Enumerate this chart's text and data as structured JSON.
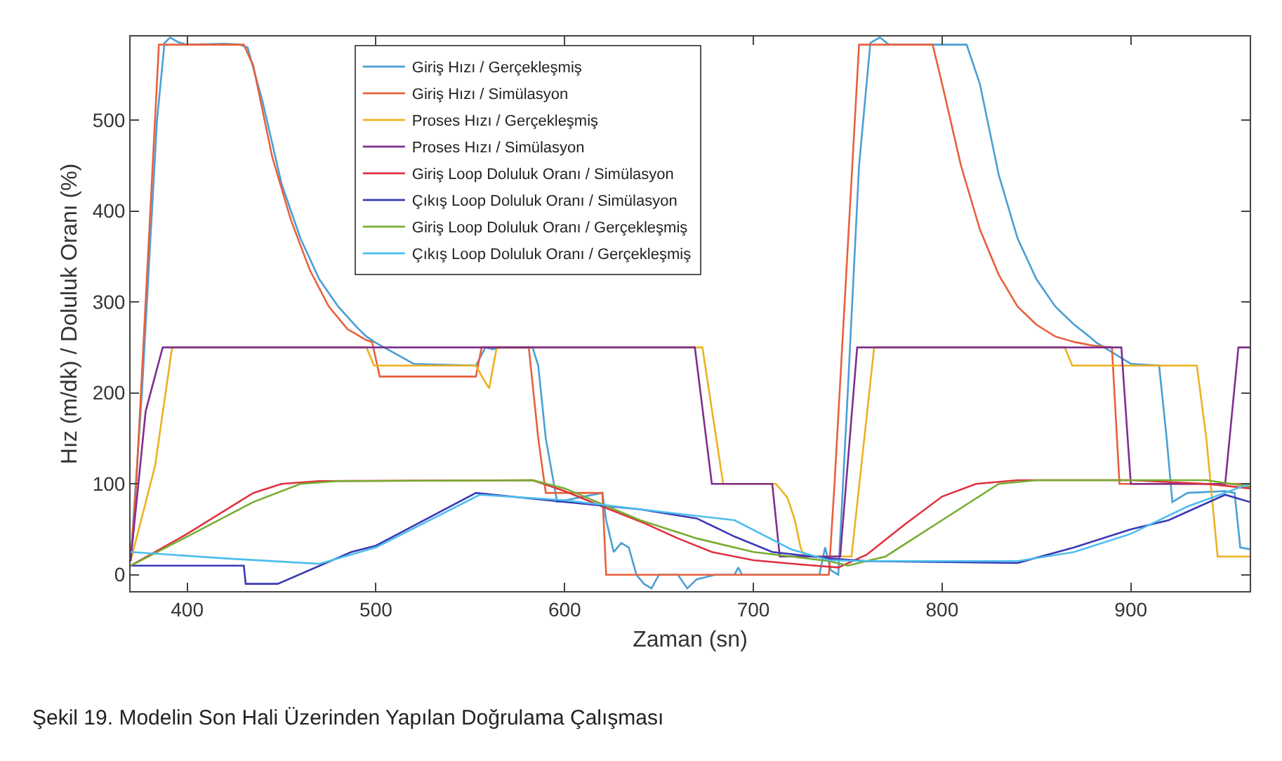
{
  "chart_data": {
    "type": "line",
    "xlabel": "Zaman (sn)",
    "ylabel": "Hız (m/dk) / Doluluk Oranı (%)",
    "xlim": [
      370,
      963
    ],
    "ylim": [
      -18,
      592
    ],
    "xticks": [
      400,
      500,
      600,
      700,
      800,
      900
    ],
    "yticks": [
      0,
      100,
      200,
      300,
      400,
      500
    ],
    "legend": "top left",
    "marker": "none",
    "line_style": "solid",
    "series": [
      {
        "name": "Giriş Hızı / Gerçekleşmiş",
        "color": "#4a9fd4",
        "x": [
          370,
          376,
          384,
          388,
          391,
          395,
          400,
          420,
          428,
          432,
          440,
          450,
          460,
          470,
          480,
          490,
          495,
          500,
          520,
          553,
          558,
          562,
          566,
          583,
          586,
          590,
          596,
          620,
          622,
          626,
          630,
          634,
          638,
          642,
          646,
          650,
          655,
          660,
          665,
          670,
          680,
          690,
          692,
          694,
          700,
          720,
          735,
          738,
          741,
          745,
          750,
          756,
          762,
          767,
          772,
          790,
          810,
          813,
          820,
          830,
          840,
          850,
          860,
          870,
          878,
          882,
          900,
          915,
          919,
          922,
          930,
          950,
          955,
          958,
          963
        ],
        "values": [
          15,
          200,
          500,
          585,
          591,
          586,
          583,
          584,
          583,
          580,
          520,
          430,
          370,
          325,
          295,
          272,
          262,
          255,
          232,
          230,
          250,
          248,
          250,
          250,
          230,
          150,
          80,
          90,
          60,
          25,
          35,
          30,
          0,
          -10,
          -15,
          0,
          0,
          0,
          -15,
          -5,
          0,
          0,
          8,
          0,
          0,
          0,
          0,
          30,
          5,
          0,
          200,
          450,
          585,
          591,
          583,
          583,
          583,
          583,
          540,
          440,
          370,
          325,
          295,
          275,
          262,
          255,
          232,
          230,
          150,
          80,
          90,
          92,
          90,
          30,
          28
        ]
      },
      {
        "name": "Giriş Hızı / Simülasyon",
        "color": "#e8603c",
        "x": [
          370,
          373,
          385,
          430,
          435,
          445,
          455,
          465,
          475,
          485,
          495,
          498,
          502,
          553,
          556,
          581,
          586,
          590,
          620,
          622,
          740,
          743,
          756,
          795,
          800,
          810,
          820,
          830,
          840,
          850,
          860,
          870,
          880,
          890,
          894,
          963
        ],
        "values": [
          15,
          100,
          583,
          583,
          560,
          460,
          390,
          335,
          295,
          270,
          258,
          256,
          218,
          218,
          250,
          250,
          150,
          90,
          90,
          0,
          0,
          100,
          583,
          583,
          540,
          450,
          380,
          330,
          295,
          275,
          262,
          256,
          252,
          250,
          100,
          100
        ]
      },
      {
        "name": "Proses Hızı / Gerçekleşmiş",
        "color": "#edb120",
        "x": [
          370,
          383,
          392,
          495,
          499,
          553,
          557,
          560,
          564,
          583,
          673,
          684,
          712,
          718,
          722,
          725,
          727,
          752,
          764,
          865,
          869,
          935,
          940,
          946,
          963
        ],
        "values": [
          15,
          120,
          250,
          250,
          230,
          230,
          215,
          205,
          250,
          250,
          250,
          100,
          100,
          85,
          60,
          30,
          20,
          20,
          250,
          250,
          230,
          230,
          150,
          20,
          20
        ]
      },
      {
        "name": "Proses Hızı / Simülasyon",
        "color": "#7e2f8e",
        "x": [
          370,
          378,
          387,
          669,
          678,
          710,
          714,
          746,
          755,
          895,
          900,
          950,
          957,
          963
        ],
        "values": [
          15,
          180,
          250,
          250,
          100,
          100,
          20,
          20,
          250,
          250,
          100,
          100,
          250,
          250
        ]
      },
      {
        "name": "Giriş Loop Doluluk Oranı / Simülasyon",
        "color": "#e03040",
        "x": [
          370,
          400,
          435,
          450,
          470,
          583,
          600,
          620,
          643,
          660,
          678,
          700,
          727,
          745,
          760,
          780,
          800,
          818,
          840,
          900,
          940,
          963
        ],
        "values": [
          10,
          45,
          90,
          100,
          103,
          104,
          92,
          75,
          56,
          40,
          25,
          16,
          11,
          8,
          22,
          55,
          86,
          100,
          104,
          104,
          100,
          95
        ]
      },
      {
        "name": "Çıkış Loop Doluluk Oranı / Simülasyon",
        "color": "#3a3ab5",
        "x": [
          370,
          430,
          431,
          448,
          487,
          500,
          553,
          600,
          640,
          670,
          690,
          710,
          740,
          760,
          840,
          870,
          900,
          920,
          950,
          963
        ],
        "values": [
          10,
          10,
          -10,
          -10,
          25,
          32,
          90,
          80,
          72,
          62,
          42,
          25,
          18,
          15,
          13,
          30,
          50,
          60,
          88,
          80
        ]
      },
      {
        "name": "Giriş Loop Doluluk Oranı / Gerçekleşmiş",
        "color": "#77ac30",
        "x": [
          370,
          400,
          435,
          460,
          480,
          583,
          600,
          640,
          670,
          700,
          740,
          750,
          770,
          800,
          830,
          850,
          940,
          963
        ],
        "values": [
          10,
          42,
          80,
          100,
          103,
          104,
          95,
          60,
          40,
          25,
          15,
          10,
          20,
          60,
          100,
          104,
          104,
          97
        ]
      },
      {
        "name": "Çıkış Loop Doluluk Oranı / Gerçekleşmiş",
        "color": "#4dbeee",
        "x": [
          370,
          420,
          470,
          500,
          555,
          600,
          640,
          690,
          720,
          740,
          760,
          840,
          870,
          900,
          930,
          963
        ],
        "values": [
          25,
          18,
          12,
          30,
          88,
          82,
          72,
          60,
          28,
          16,
          15,
          15,
          25,
          45,
          75,
          100
        ]
      }
    ],
    "annotations": [
      "Şekil 19. Modelin Son Hali Üzerinden Yapılan Doğrulama Çalışması"
    ]
  }
}
